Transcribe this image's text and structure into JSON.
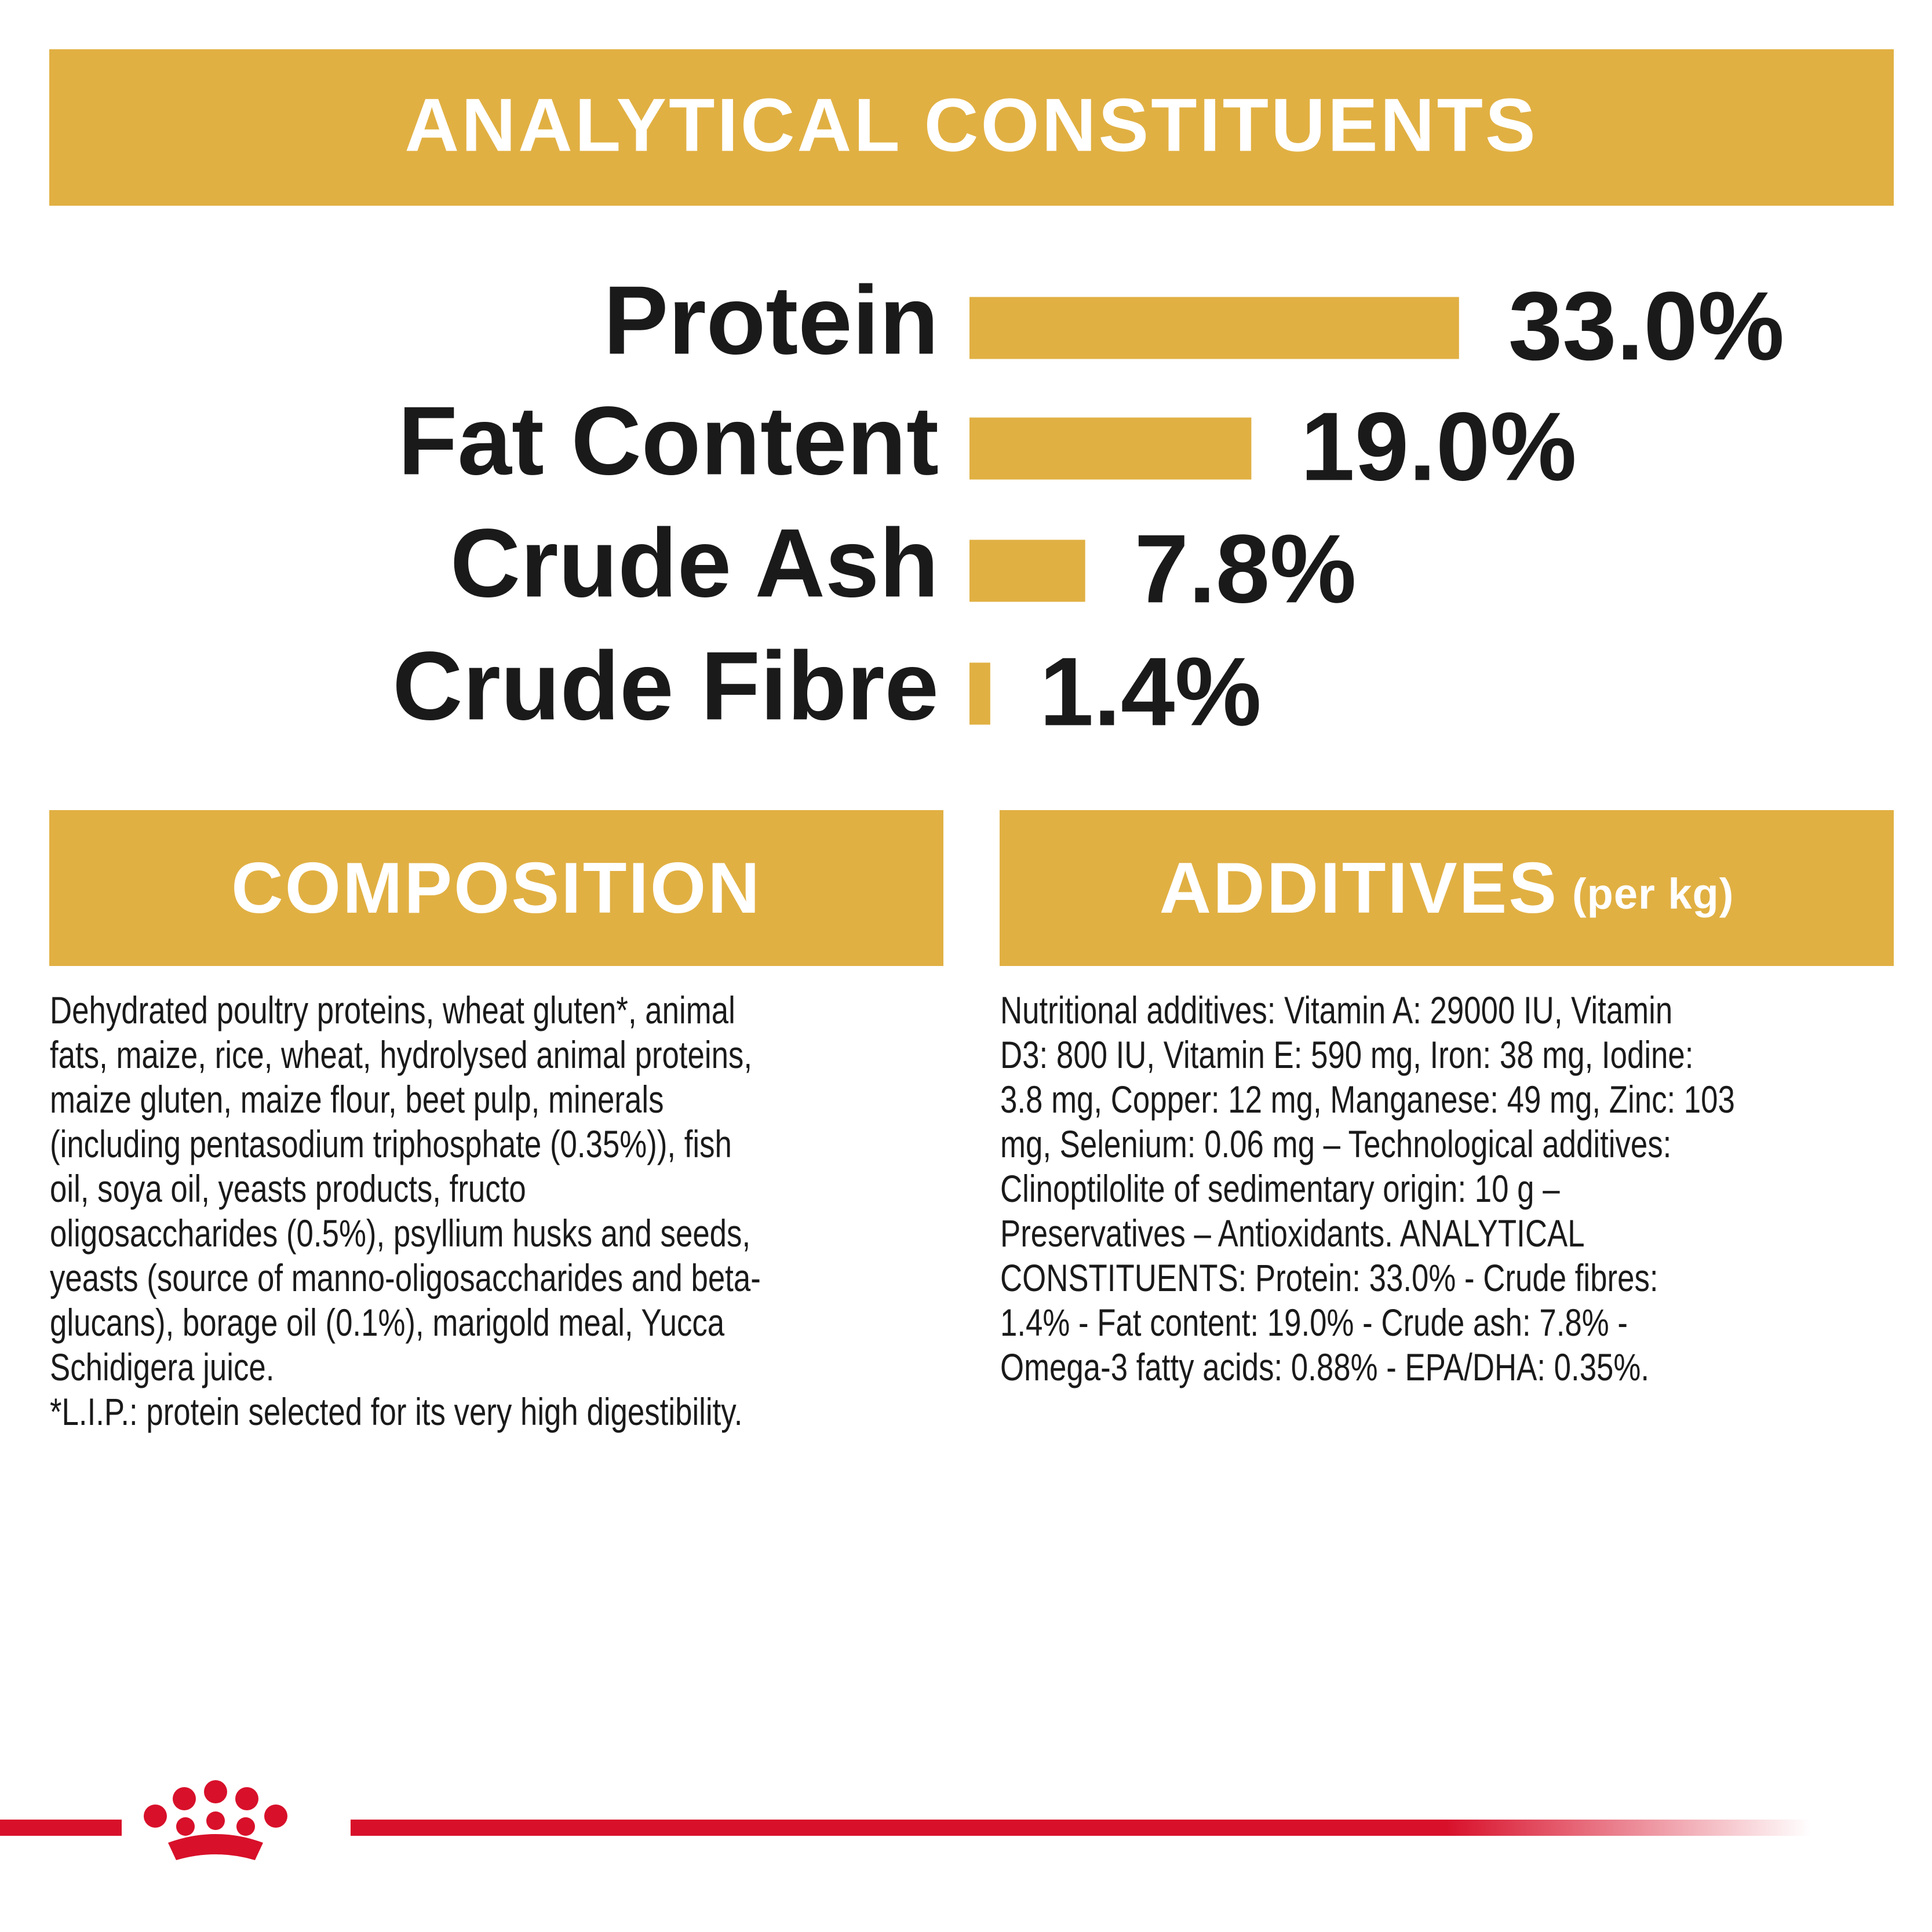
{
  "chart_data": {
    "type": "bar",
    "title": "ANALYTICAL CONSTITUENTS",
    "categories": [
      "Protein",
      "Fat Content",
      "Crude Ash",
      "Crude Fibre"
    ],
    "values": [
      33.0,
      19.0,
      7.8,
      1.4
    ],
    "value_labels": [
      "33.0%",
      "19.0%",
      "7.8%",
      "1.4%"
    ],
    "color": "#e1b043"
  },
  "composition": {
    "title": "COMPOSITION",
    "lines": [
      "Dehydrated poultry proteins, wheat gluten*, animal",
      "fats, maize, rice, wheat, hydrolysed animal proteins,",
      "maize gluten, maize flour, beet pulp, minerals",
      "(including pentasodium triphosphate (0.35%)), fish",
      "oil, soya oil, yeasts products, fructo",
      "oligosaccharides (0.5%), psyllium husks and seeds,",
      "yeasts (source of manno-oligosaccharides and beta-",
      "glucans), borage oil (0.1%), marigold meal, Yucca",
      "Schidigera juice.",
      "*L.I.P.: protein selected for its very high digestibility."
    ]
  },
  "additives": {
    "title": "ADDITIVES",
    "subtitle": "(per kg)",
    "lines": [
      "Nutritional additives: Vitamin A: 29000 IU, Vitamin",
      "D3: 800 IU, Vitamin E: 590 mg, Iron: 38 mg, Iodine:",
      "3.8 mg, Copper: 12 mg, Manganese: 49 mg, Zinc: 103",
      "mg, Selenium: 0.06 mg – Technological additives:",
      "Clinoptilolite of sedimentary origin: 10 g –",
      "Preservatives – Antioxidants. ANALYTICAL",
      "CONSTITUENTS: Protein: 33.0% - Crude fibres:",
      "1.4% - Fat content: 19.0% - Crude ash: 7.8% -",
      "Omega-3 fatty acids: 0.88% - EPA/DHA: 0.35%."
    ]
  }
}
